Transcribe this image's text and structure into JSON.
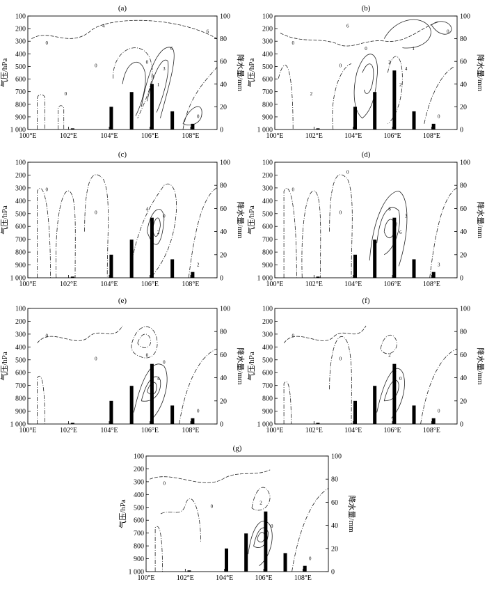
{
  "figure": {
    "xlabel": "",
    "ylabel_left": "气压/hPa",
    "ylabel_right": "降水量/mm"
  },
  "chart_data": [
    {
      "type": "bar",
      "panel": "(a)",
      "x_ticks": [
        "100°E",
        "102°E",
        "104°E",
        "106°E",
        "108°E"
      ],
      "y_left_ticks": [
        "100",
        "200",
        "300",
        "400",
        "500",
        "600",
        "700",
        "800",
        "900",
        "1 000"
      ],
      "y_right_ticks": [
        "0",
        "20",
        "40",
        "60",
        "80",
        "100"
      ],
      "xlim": [
        100,
        109.3
      ],
      "ylim_pressure": [
        1000,
        100
      ],
      "ylim_precip": [
        0,
        100
      ],
      "precip": {
        "x": [
          102.2,
          104.1,
          105.1,
          106.1,
          107.1,
          108.1
        ],
        "values": [
          1,
          20,
          33,
          40,
          16,
          5
        ]
      },
      "contour_labels": [
        "0",
        "0",
        "0",
        "0",
        "0",
        "0",
        "1",
        "3",
        "4",
        "6",
        "6",
        "0"
      ]
    },
    {
      "type": "bar",
      "panel": "(b)",
      "x_ticks": [
        "100°E",
        "102°E",
        "104°E",
        "106°E",
        "108°E"
      ],
      "y_left_ticks": [
        "100",
        "200",
        "300",
        "400",
        "500",
        "600",
        "700",
        "800",
        "900",
        "1 000"
      ],
      "y_right_ticks": [
        "0",
        "20",
        "40",
        "60",
        "80",
        "100"
      ],
      "xlim": [
        100,
        109.3
      ],
      "ylim_pressure": [
        1000,
        100
      ],
      "ylim_precip": [
        0,
        100
      ],
      "precip": {
        "x": [
          102.2,
          104.1,
          105.1,
          106.1,
          107.1,
          108.1
        ],
        "values": [
          1,
          20,
          33,
          52,
          16,
          5
        ]
      },
      "contour_labels": [
        "0",
        "0",
        "0",
        "0",
        "2",
        "2",
        "2",
        "4",
        "6",
        "1",
        "0",
        "2",
        "0"
      ]
    },
    {
      "type": "bar",
      "panel": "(c)",
      "x_ticks": [
        "100°E",
        "102°E",
        "104°E",
        "106°E",
        "108°E"
      ],
      "y_left_ticks": [
        "100",
        "200",
        "300",
        "400",
        "500",
        "600",
        "700",
        "800",
        "900",
        "1 000"
      ],
      "y_right_ticks": [
        "0",
        "20",
        "40",
        "60",
        "80",
        "100"
      ],
      "xlim": [
        100,
        109.3
      ],
      "ylim_pressure": [
        1000,
        100
      ],
      "ylim_precip": [
        0,
        100
      ],
      "precip": {
        "x": [
          102.2,
          104.1,
          105.1,
          106.1,
          107.1,
          108.1
        ],
        "values": [
          1,
          20,
          33,
          52,
          16,
          5
        ]
      },
      "contour_labels": [
        "0",
        "0",
        "0",
        "2",
        "4",
        "6",
        "2",
        "0"
      ]
    },
    {
      "type": "bar",
      "panel": "(d)",
      "x_ticks": [
        "100°E",
        "102°E",
        "104°E",
        "106°E",
        "108°E"
      ],
      "y_left_ticks": [
        "100",
        "200",
        "300",
        "400",
        "500",
        "600",
        "700",
        "800",
        "900",
        "1 000"
      ],
      "y_right_ticks": [
        "0",
        "20",
        "40",
        "60",
        "80",
        "100"
      ],
      "xlim": [
        100,
        109.3
      ],
      "ylim_pressure": [
        1000,
        100
      ],
      "ylim_precip": [
        0,
        100
      ],
      "precip": {
        "x": [
          102.2,
          104.1,
          105.1,
          106.1,
          107.1,
          108.1
        ],
        "values": [
          1,
          20,
          33,
          52,
          16,
          5
        ]
      },
      "contour_labels": [
        "0",
        "0",
        "0",
        "3",
        "6",
        "12",
        "6",
        "3",
        "0"
      ]
    },
    {
      "type": "bar",
      "panel": "(e)",
      "x_ticks": [
        "100°E",
        "102°E",
        "104°E",
        "106°E",
        "108°E"
      ],
      "y_left_ticks": [
        "100",
        "200",
        "300",
        "400",
        "500",
        "600",
        "700",
        "800",
        "900",
        "1 000"
      ],
      "y_right_ticks": [
        "0",
        "20",
        "40",
        "60",
        "80",
        "100"
      ],
      "xlim": [
        100,
        109.3
      ],
      "ylim_pressure": [
        1000,
        100
      ],
      "ylim_precip": [
        0,
        100
      ],
      "precip": {
        "x": [
          102.2,
          104.1,
          105.1,
          106.1,
          107.1,
          108.1
        ],
        "values": [
          1,
          20,
          33,
          52,
          16,
          5
        ]
      },
      "contour_labels": [
        "0",
        "0",
        "0",
        "0",
        "0",
        "2",
        "4",
        "0"
      ]
    },
    {
      "type": "bar",
      "panel": "(f)",
      "x_ticks": [
        "100°E",
        "102°E",
        "104°E",
        "106°E",
        "108°E"
      ],
      "y_left_ticks": [
        "100",
        "200",
        "300",
        "400",
        "500",
        "600",
        "700",
        "800",
        "900",
        "1 000"
      ],
      "y_right_ticks": [
        "0",
        "20",
        "40",
        "60",
        "80",
        "100"
      ],
      "xlim": [
        100,
        109.3
      ],
      "ylim_pressure": [
        1000,
        100
      ],
      "ylim_precip": [
        0,
        100
      ],
      "precip": {
        "x": [
          102.2,
          104.1,
          105.1,
          106.1,
          107.1,
          108.1
        ],
        "values": [
          1,
          20,
          33,
          52,
          16,
          5
        ]
      },
      "contour_labels": [
        "0",
        "0",
        "0",
        "0",
        "2",
        "4",
        "0"
      ]
    },
    {
      "type": "bar",
      "panel": "(g)",
      "x_ticks": [
        "100°E",
        "102°E",
        "104°E",
        "106°E",
        "108°E"
      ],
      "y_left_ticks": [
        "100",
        "200",
        "300",
        "400",
        "500",
        "600",
        "700",
        "800",
        "900",
        "1 000"
      ],
      "y_right_ticks": [
        "0",
        "20",
        "40",
        "60",
        "80",
        "100"
      ],
      "xlim": [
        100,
        109.3
      ],
      "ylim_pressure": [
        1000,
        100
      ],
      "ylim_precip": [
        0,
        100
      ],
      "precip": {
        "x": [
          102.2,
          104.1,
          105.1,
          106.1,
          107.1,
          108.1
        ],
        "values": [
          1,
          20,
          33,
          52,
          16,
          5
        ]
      },
      "contour_labels": [
        "0",
        "0",
        "0",
        "0",
        "2",
        "2",
        "0"
      ]
    }
  ]
}
